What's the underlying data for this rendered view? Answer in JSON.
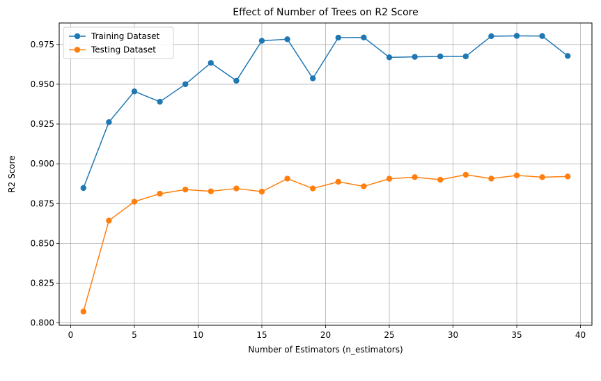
{
  "chart_data": {
    "type": "line",
    "title": "Effect of Number of Trees on R2 Score",
    "xlabel": "Number of Estimators (n_estimators)",
    "ylabel": "R2 Score",
    "xlim": [
      -0.9,
      40.9
    ],
    "ylim": [
      0.7985,
      0.9885
    ],
    "xticks": [
      0,
      5,
      10,
      15,
      20,
      25,
      30,
      35,
      40
    ],
    "yticks": [
      0.8,
      0.825,
      0.85,
      0.875,
      0.9,
      0.925,
      0.95,
      0.975
    ],
    "ytick_labels": [
      "0.800",
      "0.825",
      "0.850",
      "0.875",
      "0.900",
      "0.925",
      "0.950",
      "0.975"
    ],
    "grid": true,
    "legend_position": "top-left",
    "x": [
      1,
      3,
      5,
      7,
      9,
      11,
      13,
      15,
      17,
      19,
      21,
      23,
      25,
      27,
      29,
      31,
      33,
      35,
      37,
      39
    ],
    "series": [
      {
        "name": "Training Dataset",
        "color": "#1f77b4",
        "values": [
          0.8848,
          0.9262,
          0.9455,
          0.939,
          0.95,
          0.9634,
          0.9522,
          0.9773,
          0.9783,
          0.9537,
          0.9793,
          0.9794,
          0.9669,
          0.9672,
          0.9675,
          0.9675,
          0.9802,
          0.9804,
          0.9803,
          0.9678
        ]
      },
      {
        "name": "Testing Dataset",
        "color": "#ff7f0e",
        "values": [
          0.8071,
          0.8643,
          0.8762,
          0.8812,
          0.8838,
          0.8827,
          0.8845,
          0.8825,
          0.8907,
          0.8845,
          0.8887,
          0.8858,
          0.8906,
          0.8916,
          0.89,
          0.8931,
          0.8907,
          0.8927,
          0.8916,
          0.892
        ]
      }
    ]
  }
}
